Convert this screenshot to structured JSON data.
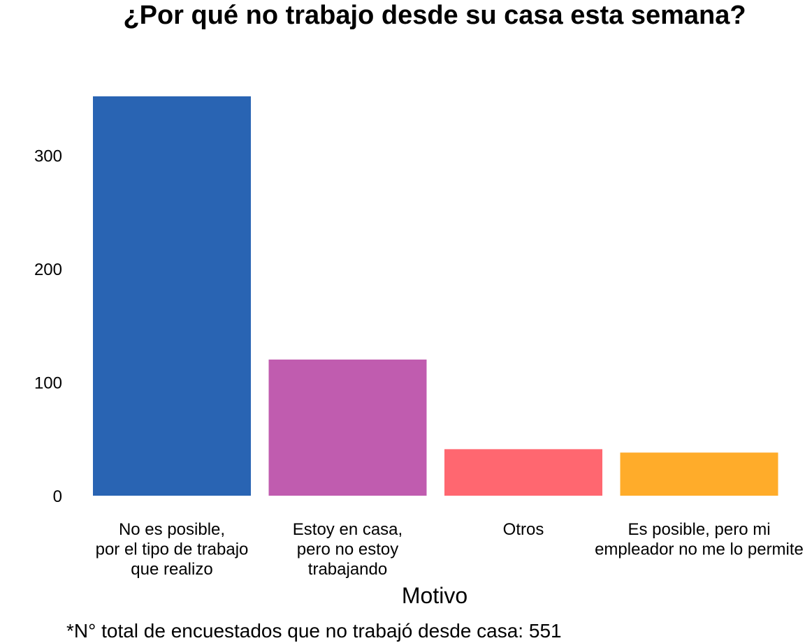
{
  "chart_data": {
    "type": "bar",
    "title": "¿Por qué no trabajo desde su casa esta semana?",
    "xlabel": "Motivo",
    "ylabel": "",
    "ylim": [
      0,
      352
    ],
    "yticks": [
      0,
      100,
      200,
      300
    ],
    "grid": false,
    "categories": [
      [
        "No es posible,",
        "por el tipo de trabajo",
        "que realizo"
      ],
      [
        "Estoy en casa,",
        "pero no estoy",
        "trabajando"
      ],
      [
        "Otros"
      ],
      [
        "Es posible, pero mi",
        "empleador no me lo permite"
      ]
    ],
    "values": [
      352,
      120,
      41,
      38
    ],
    "colors": [
      "#2964B3",
      "#C05CAF",
      "#FF6770",
      "#FFAC2A"
    ],
    "caption": "*N° total de encuestados que no trabajó desde casa: 551"
  }
}
